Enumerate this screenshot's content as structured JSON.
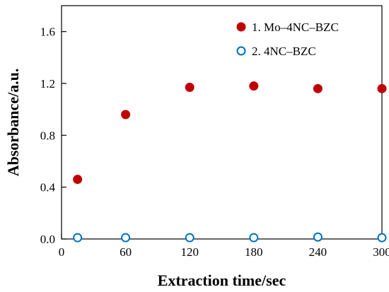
{
  "chart_data": {
    "type": "scatter",
    "title": "",
    "xlabel": "Extraction time/sec",
    "ylabel": "Absorbance/a.u.",
    "xlim": [
      0,
      300
    ],
    "ylim": [
      0,
      1.8
    ],
    "xticks": [
      "0",
      "60",
      "120",
      "180",
      "240",
      "300"
    ],
    "yticks": [
      "0.0",
      "0.4",
      "0.8",
      "1.2",
      "1.6"
    ],
    "grid": false,
    "legend_position": "top-right",
    "series": [
      {
        "name": "1. Mo–4NC–BZC",
        "marker": "filled-circle",
        "color": "#c00000",
        "points": [
          {
            "x": 15,
            "y": 0.46
          },
          {
            "x": 60,
            "y": 0.96
          },
          {
            "x": 120,
            "y": 1.17
          },
          {
            "x": 180,
            "y": 1.18
          },
          {
            "x": 240,
            "y": 1.16
          },
          {
            "x": 300,
            "y": 1.16
          }
        ]
      },
      {
        "name": "2. 4NC–BZC",
        "marker": "open-circle",
        "color": "#0070c0",
        "points": [
          {
            "x": 15,
            "y": 0.01
          },
          {
            "x": 60,
            "y": 0.01
          },
          {
            "x": 120,
            "y": 0.01
          },
          {
            "x": 180,
            "y": 0.01
          },
          {
            "x": 240,
            "y": 0.015
          },
          {
            "x": 300,
            "y": 0.01
          }
        ]
      }
    ]
  }
}
